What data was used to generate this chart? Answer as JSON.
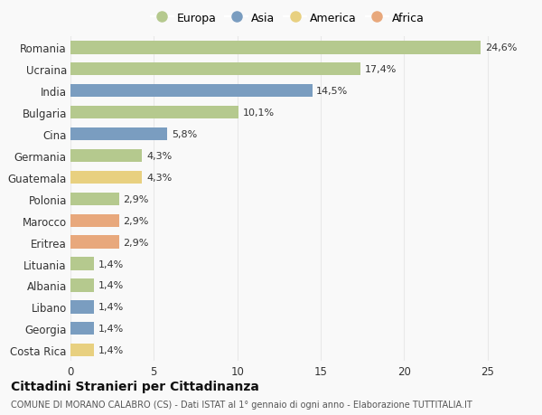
{
  "countries": [
    "Romania",
    "Ucraina",
    "India",
    "Bulgaria",
    "Cina",
    "Germania",
    "Guatemala",
    "Polonia",
    "Marocco",
    "Eritrea",
    "Lituania",
    "Albania",
    "Libano",
    "Georgia",
    "Costa Rica"
  ],
  "values": [
    24.6,
    17.4,
    14.5,
    10.1,
    5.8,
    4.3,
    4.3,
    2.9,
    2.9,
    2.9,
    1.4,
    1.4,
    1.4,
    1.4,
    1.4
  ],
  "labels": [
    "24,6%",
    "17,4%",
    "14,5%",
    "10,1%",
    "5,8%",
    "4,3%",
    "4,3%",
    "2,9%",
    "2,9%",
    "2,9%",
    "1,4%",
    "1,4%",
    "1,4%",
    "1,4%",
    "1,4%"
  ],
  "continents": [
    "Europa",
    "Europa",
    "Asia",
    "Europa",
    "Asia",
    "Europa",
    "America",
    "Europa",
    "Africa",
    "Africa",
    "Europa",
    "Europa",
    "Asia",
    "Asia",
    "America"
  ],
  "colors": {
    "Europa": "#b5c98e",
    "Asia": "#7a9dc0",
    "America": "#e8d080",
    "Africa": "#e8a87c"
  },
  "legend_order": [
    "Europa",
    "Asia",
    "America",
    "Africa"
  ],
  "xlim": [
    0,
    26
  ],
  "xticks": [
    0,
    5,
    10,
    15,
    20,
    25
  ],
  "title": "Cittadini Stranieri per Cittadinanza",
  "subtitle": "COMUNE DI MORANO CALABRO (CS) - Dati ISTAT al 1° gennaio di ogni anno - Elaborazione TUTTITALIA.IT",
  "bg_color": "#f9f9f9",
  "grid_color": "#e8e8e8",
  "bar_height": 0.6,
  "label_fontsize": 8,
  "ytick_fontsize": 8.5,
  "xtick_fontsize": 8.5,
  "title_fontsize": 10,
  "subtitle_fontsize": 7
}
